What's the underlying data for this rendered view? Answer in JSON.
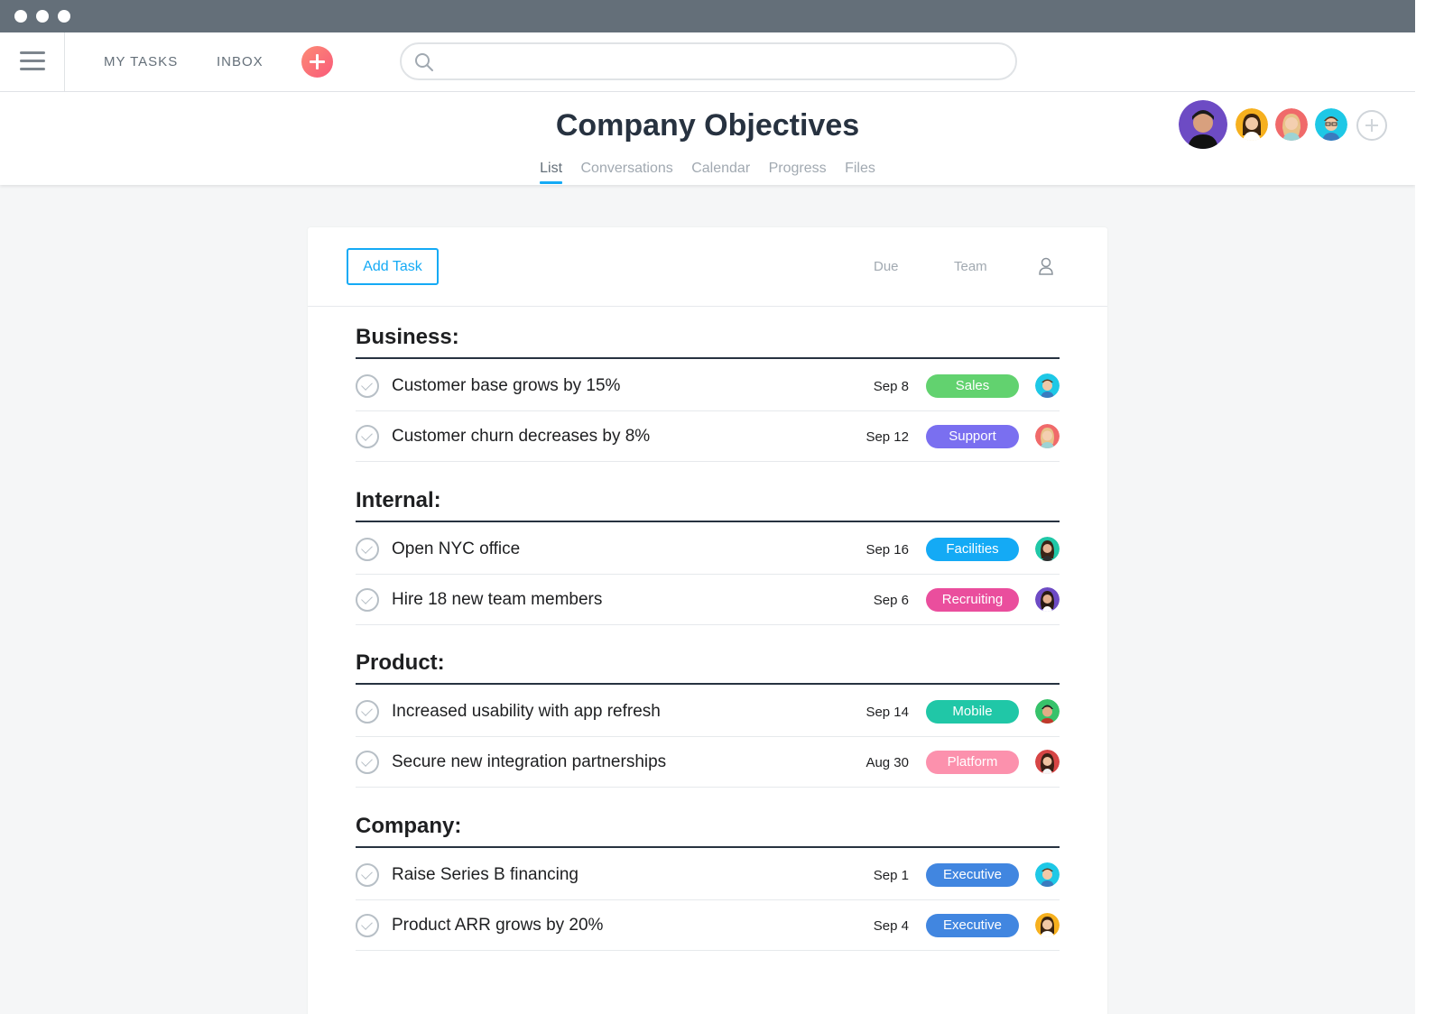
{
  "nav": {
    "my_tasks": "MY TASKS",
    "inbox": "INBOX",
    "search_placeholder": ""
  },
  "project": {
    "title": "Company Objectives",
    "tabs": [
      {
        "label": "List",
        "active": true
      },
      {
        "label": "Conversations",
        "active": false
      },
      {
        "label": "Calendar",
        "active": false
      },
      {
        "label": "Progress",
        "active": false
      },
      {
        "label": "Files",
        "active": false
      }
    ]
  },
  "toolbar": {
    "add_task": "Add Task",
    "due_header": "Due",
    "team_header": "Team"
  },
  "sections": [
    {
      "title": "Business:",
      "tasks": [
        {
          "name": "Customer base grows by 15%",
          "due": "Sep 8",
          "tag": "Sales",
          "tag_color": "#62d26f"
        },
        {
          "name": "Customer churn decreases by 8%",
          "due": "Sep 12",
          "tag": "Support",
          "tag_color": "#7a6ff0"
        }
      ]
    },
    {
      "title": "Internal:",
      "tasks": [
        {
          "name": "Open NYC office",
          "due": "Sep 16",
          "tag": "Facilities",
          "tag_color": "#14aaf5"
        },
        {
          "name": "Hire 18 new team members",
          "due": "Sep 6",
          "tag": "Recruiting",
          "tag_color": "#ea4e9d"
        }
      ]
    },
    {
      "title": "Product:",
      "tasks": [
        {
          "name": "Increased usability with app refresh",
          "due": "Sep 14",
          "tag": "Mobile",
          "tag_color": "#20c7a7"
        },
        {
          "name": "Secure new integration partnerships",
          "due": "Aug 30",
          "tag": "Platform",
          "tag_color": "#fc91ad"
        }
      ]
    },
    {
      "title": "Company:",
      "tasks": [
        {
          "name": "Raise Series B financing",
          "due": "Sep 1",
          "tag": "Executive",
          "tag_color": "#4186e0"
        },
        {
          "name": "Product ARR grows by 20%",
          "due": "Sep 4",
          "tag": "Executive",
          "tag_color": "#4186e0"
        }
      ]
    }
  ],
  "colors": {
    "accent": "#14aaf5",
    "titlebar": "#646f79",
    "page_bg": "#f5f6f7"
  }
}
